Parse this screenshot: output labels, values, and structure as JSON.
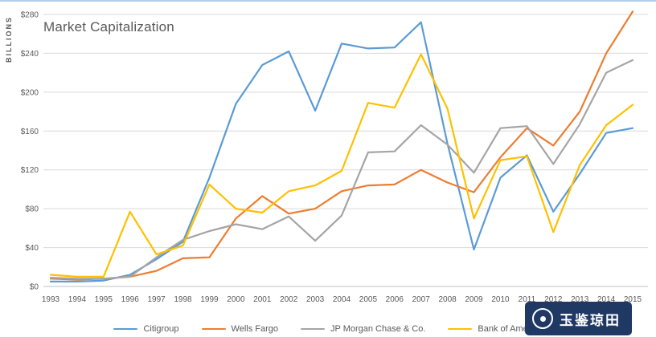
{
  "title": "Market Capitalization",
  "y_axis_label": "BILLIONS",
  "watermark": {
    "text": "玉鉴琼田",
    "bg_color": "#1F3864"
  },
  "chart_data": {
    "type": "line",
    "title": "Market Capitalization",
    "xlabel": "",
    "ylabel": "BILLIONS",
    "ylim": [
      0,
      280
    ],
    "y_ticks": [
      0,
      40,
      80,
      120,
      160,
      200,
      240,
      280
    ],
    "y_tick_prefix": "$",
    "grid": true,
    "legend_position": "bottom",
    "x": [
      1993,
      1994,
      1995,
      1996,
      1997,
      1998,
      1999,
      2000,
      2001,
      2002,
      2003,
      2004,
      2005,
      2006,
      2007,
      2008,
      2009,
      2010,
      2011,
      2012,
      2013,
      2014,
      2015
    ],
    "series": [
      {
        "name": "Citigroup",
        "color": "#5B9BD5",
        "values": [
          5,
          5,
          6,
          12,
          28,
          46,
          112,
          188,
          228,
          242,
          181,
          250,
          245,
          246,
          272,
          147,
          38,
          112,
          135,
          77,
          116,
          158,
          163
        ]
      },
      {
        "name": "Wells Fargo",
        "color": "#ED7D31",
        "values": [
          8,
          7,
          8,
          10,
          16,
          29,
          30,
          70,
          93,
          75,
          80,
          98,
          104,
          105,
          120,
          107,
          97,
          133,
          163,
          145,
          180,
          240,
          283
        ]
      },
      {
        "name": "JP Morgan Chase & Co.",
        "color": "#A5A5A5",
        "values": [
          9,
          8,
          8,
          10,
          30,
          48,
          57,
          64,
          59,
          72,
          47,
          73,
          138,
          139,
          166,
          146,
          117,
          163,
          165,
          126,
          167,
          220,
          233
        ]
      },
      {
        "name": "Bank of America",
        "color": "#FFC000",
        "values": [
          12,
          10,
          10,
          77,
          33,
          42,
          105,
          80,
          76,
          98,
          104,
          119,
          189,
          184,
          239,
          183,
          70,
          130,
          134,
          56,
          125,
          166,
          187
        ]
      }
    ]
  }
}
